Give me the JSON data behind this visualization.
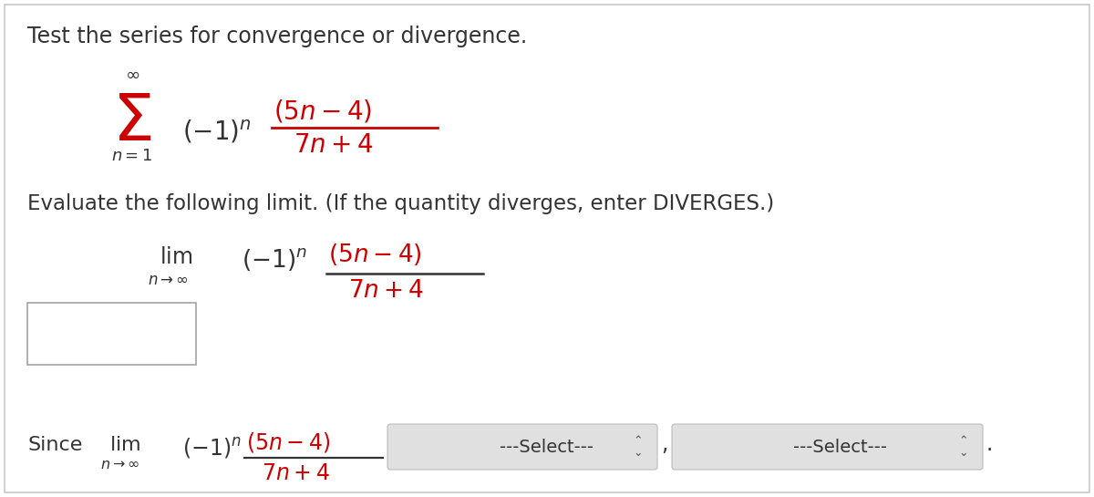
{
  "background_color": "#ffffff",
  "border_color": "#c8c8c8",
  "text_color": "#333333",
  "red_color": "#cc0000",
  "light_gray": "#d0d0d0",
  "select_bg": "#e0e0e0",
  "title": "Test the series for convergence or divergence.",
  "evaluate_text": "Evaluate the following limit. (If the quantity diverges, enter DIVERGES.)",
  "select_text": "---Select---",
  "comma": ",",
  "period": "."
}
